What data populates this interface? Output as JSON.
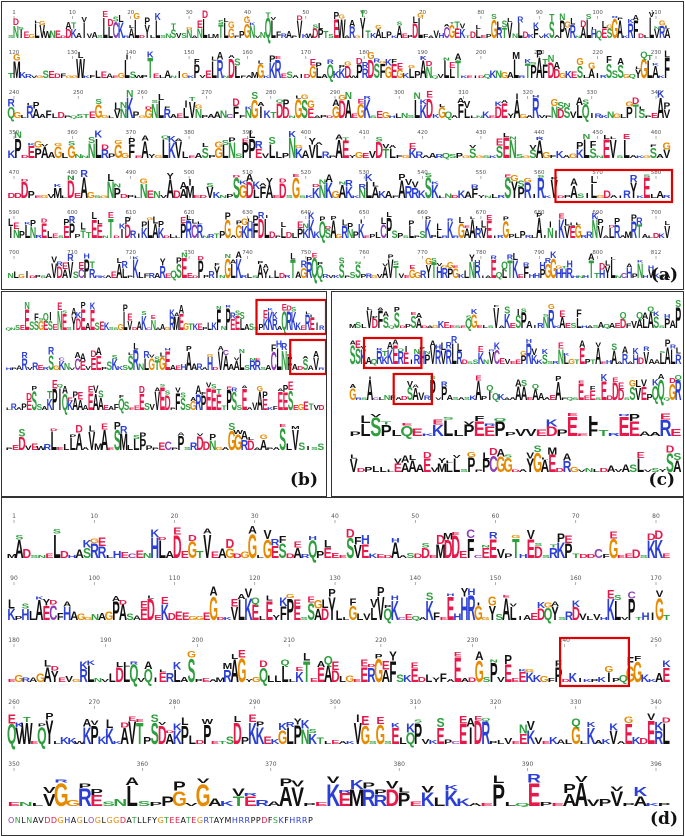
{
  "figure": {
    "panels": [
      {
        "id": "a",
        "label": "(a)",
        "rows": [
          {
            "start": 1,
            "end": 115,
            "ticks": [
              1,
              10,
              20,
              30,
              40,
              50,
              60,
              70,
              80,
              90,
              100,
              110
            ]
          },
          {
            "start": 116,
            "end": 232,
            "ticks": [
              120,
              130,
              140,
              150,
              160,
              170,
              180,
              190,
              200,
              210,
              220,
              230
            ]
          },
          {
            "start": 233,
            "end": 349,
            "ticks": [
              240,
              250,
              260,
              270,
              280,
              290,
              300,
              310,
              320,
              330,
              340
            ]
          },
          {
            "start": 350,
            "end": 466,
            "ticks": [
              350,
              360,
              370,
              380,
              390,
              400,
              410,
              420,
              430,
              440,
              450,
              460
            ]
          },
          {
            "start": 467,
            "end": 583,
            "ticks": [
              470,
              480,
              490,
              500,
              510,
              520,
              530,
              540,
              550,
              560,
              570,
              580
            ]
          },
          {
            "start": 584,
            "end": 700,
            "ticks": [
              590,
              600,
              610,
              620,
              630,
              640,
              650,
              660,
              670,
              680,
              690,
              700
            ]
          },
          {
            "start": 700,
            "end": 812,
            "ticks": [
              700,
              710,
              720,
              730,
              740,
              750,
              760,
              770,
              780,
              790,
              800,
              812
            ]
          }
        ],
        "sequence_rows": [
          "SNIEGLVWNEDDKAIVASLLCKRALDYLLSNSVSNANLLMTLGFPGNVNQLFRAPVKWDPTSEWARGYTKALPKAEPDLFAVHCGEKTDLEPGRTVNLDKFVKSAPVRNALHQESGAKRFDLLVRA",
          "TMKRVGSEDFGGWKFLEAEGLSWPTELANIGKPVELRNDLFAMGKKRESAIDGLAQKKDWPRDSFGEGKLPANQVLLTKEIDQKNGALRTPAFDDGKESLAIRSSSGQYGLAKF",
          "QGLRAAFLDPQSTEGGLVNKPGGNLRAELVNPAANCFFNGIKTDDNGSEAPDGDAEGKSEGHLNSLKDKGQAFLLNKEDEYAGARVPNDSVLQIRKNGLPTSPEAV",
          "KPDEPAAGLGNNNLRPGGFEAYGLKVLEASPGLNSPPEVLLPNKAVLRPAEYGEVDTLFGKRAARQSPGSGSKSENSGSAGFKAGKLSNEVSLAKGSAV",
          "DDDPEGVMLDEAGSGNPDPLNENVADAMEDVKNPSGDLFAEDSGSKKNKGAKKNLAKAFARRKSKLNDKAFYNLRSYPRIRKVDPASILGDAIRYKELAR",
          "INPLNRELESEPPTTEENTDIDRIKLAKDLLPRCRNRTPGAGKHFDLDPLDLPKKKQSAGRNPKEPLCPSPSLPSKPLRKRGAARVEIRGPLPRLAINIKVEGRRNVALRAMRTALDKV",
          "NLGIDPSAVDAVSCPRRKAEALPKLFRAREQSEEDPPRYNGLKRLSAYLLDRTAGRQQRVKSPSSPRGVAVTVEGGRYTHRPGKLNRIAEQLTKEFHHPGGHHRHNHTTHYLNCHPNHVKVA"
        ],
        "highlight": "DPASILGDAIRYKELAR"
      },
      {
        "id": "b",
        "label": "(b)",
        "sequence_rows": [
          "QNSEESSGESENESYDEAESEKSSGLVDAKCNAAGRMEGTKEPLKFNPEELASSPKKRAQRKKEREIR",
          "HPARVRERSGKNVCEVEEPSKKSSRNLGTGEAEHAARAHDVAAALSRRSACLNFADSAVR",
          "LRAPESSAKPIQKAAAEAAEAFQSEEESVVEDPFSSGRPEEETPSSEAVAEKFEESEGETVD",
          "PEDVEWRLELLAAVMAESMLLPPPECPPSRDDNGAGGRDAAPASLVSISS"
        ],
        "highlights": [
          "PKKRAQRKKEREIR",
          "ADSAVR"
        ]
      },
      {
        "id": "c",
        "label": "(c)",
        "sequence_rows": [
          "MSLVDFSQSDPSADAGKEESEQGELSVAKESPAIRNRKAESLHASAQAEDFVALASSPAP",
          "SSKAQRKKEREIRHPVRVRLRDSSKNVCEVEEPRKKSSRNLGTEPTAEHAARAHDVAALALR",
          "GRSACLNFADSAVRPVPASASKAPIQKAAAAEAAAEAFQSEEESEDDDSSVEPQQQGR",
          "PLSPLQEKKLLPEEPPVVEDPEEFTREEAARE",
          "VDPLLLEAAAEVMLLSPPPCGGDAYGAEDRGVNLDAVASLVSYSA"
        ],
        "highlights": [
          "AQRKKEREIR",
          "ADSAVR"
        ]
      },
      {
        "id": "d",
        "label": "(d)",
        "rows": [
          {
            "ticks": [
              1,
              10,
              20,
              30,
              40,
              50,
              60,
              70,
              80
            ]
          },
          {
            "ticks": [
              90,
              100,
              110,
              120,
              130,
              140,
              150,
              160,
              170
            ]
          },
          {
            "ticks": [
              180,
              190,
              200,
              210,
              220,
              230,
              240,
              250
            ]
          },
          {
            "ticks": [
              260,
              270,
              280,
              290,
              300,
              310,
              320,
              330,
              340
            ]
          },
          {
            "ticks": [
              350,
              360,
              370,
              380,
              390,
              396
            ]
          }
        ],
        "sequence_rows": [
          "MADSNELDHASRRLHECENHLADEGTVEAGDGGLGESDARQPEEESVEKEDAASDDEMDDEFCEEVPTHEDSRKPTDDCFGEEDSKKE",
          "KPHLAECFHAGGNAGPASAEDEKDEEGGEGDKVLKELEYFPESSADYLLGLVLVQKCEQAKFEEHHRGGYSALIAEDQYSRDVLVHKLVPTHIGT",
          "EGRAGAYEVGRLNVLDLQVQIERLASPEAMRAGYGQLLLLKTEEADLGEERGAFSKEDLYFAEADGSPVEEEKKGFPDKIKPKIPQGGKKAE",
          "QVWEQYLKKWKPKKKAVTPSDAKPLDPETSDPKKEKGLPNKTLEAKVGSGSELQPVKEPCEIDRPLVEEKVEKALGLKAKVAEKDERL",
          "ENLVGGRESNLSPPGVGAKTERAAVPEKEMRRDPEKLKKAEPLQEPEAAVPVPAKP"
        ],
        "highlights": [
          "DKIKPKIPQ",
          "EKKGLPNKTL"
        ],
        "tail_text": "ONLNAVDDGHAGLOGLGGDATLLFYGTEEATEGRTAYMHRRPPDFSKFHRRP"
      }
    ]
  },
  "colors": {
    "acidic": "#e6194b",
    "basic": "#2b3fd6",
    "hydrophobic": "#111111",
    "polar": "#2e9e3e",
    "neutral": "#8b3fb5",
    "special": "#e68a00",
    "highlight_box": "#e00000",
    "gray_tick": "#777777"
  }
}
